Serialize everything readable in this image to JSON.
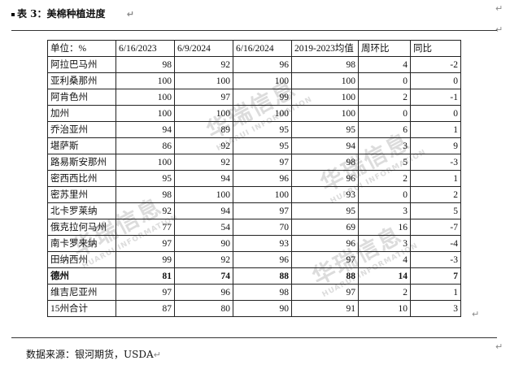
{
  "title": "表 3：美棉种植进度",
  "return_mark": "↵",
  "table": {
    "headers": [
      "单位：%",
      "6/16/2023",
      "6/9/2024",
      "6/16/2024",
      "2019-2023均值",
      "周环比",
      "同比"
    ],
    "rows": [
      [
        "阿拉巴马州",
        "98",
        "92",
        "96",
        "98",
        "4",
        "-2"
      ],
      [
        "亚利桑那州",
        "100",
        "100",
        "100",
        "100",
        "0",
        "0"
      ],
      [
        "阿肯色州",
        "100",
        "97",
        "99",
        "100",
        "2",
        "-1"
      ],
      [
        "加州",
        "100",
        "100",
        "100",
        "100",
        "0",
        "0"
      ],
      [
        "乔治亚州",
        "94",
        "89",
        "95",
        "95",
        "6",
        "1"
      ],
      [
        "堪萨斯",
        "86",
        "92",
        "95",
        "94",
        "3",
        "9"
      ],
      [
        "路易斯安那州",
        "100",
        "92",
        "97",
        "98",
        "5",
        "-3"
      ],
      [
        "密西西比州",
        "95",
        "94",
        "96",
        "96",
        "2",
        "1"
      ],
      [
        "密苏里州",
        "98",
        "100",
        "100",
        "93",
        "0",
        "2"
      ],
      [
        "北卡罗莱纳",
        "92",
        "94",
        "97",
        "95",
        "3",
        "5"
      ],
      [
        "俄克拉何马州",
        "77",
        "54",
        "70",
        "69",
        "16",
        "-7"
      ],
      [
        "南卡罗来纳",
        "97",
        "90",
        "93",
        "96",
        "3",
        "-4"
      ],
      [
        "田纳西州",
        "99",
        "92",
        "96",
        "97",
        "4",
        "-3"
      ],
      [
        "德州",
        "81",
        "74",
        "88",
        "88",
        "14",
        "7"
      ],
      [
        "维吉尼亚州",
        "97",
        "96",
        "98",
        "97",
        "2",
        "1"
      ],
      [
        "15州合计",
        "87",
        "80",
        "90",
        "91",
        "10",
        "3"
      ]
    ],
    "bold_row": "德州"
  },
  "watermark": {
    "text": "华瑞信息",
    "sub": "HUARUI INFORMATION"
  },
  "source": "数据来源：银河期货，USDA"
}
